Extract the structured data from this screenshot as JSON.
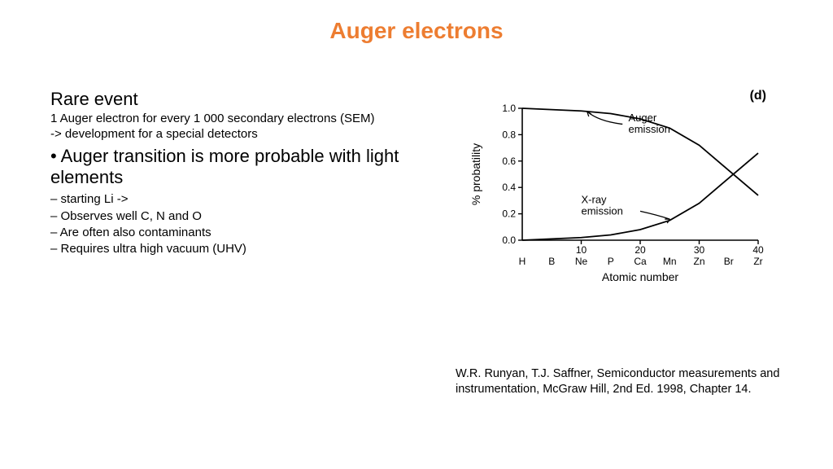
{
  "title": {
    "text": "Auger electrons",
    "color": "#ed7d31",
    "fontsize": 28
  },
  "left": {
    "heading": "Rare event",
    "line1": "1 Auger electron for every 1 000 secondary electrons (SEM)",
    "line2": "-> development for a special detectors",
    "bullet": "• Auger transition is more probable with light elements",
    "sub1": "– starting Li ->",
    "sub2": "– Observes well C, N and O",
    "sub3": "– Are often also contaminants",
    "sub4": "– Requires ultra high vacuum (UHV)"
  },
  "chart": {
    "type": "line",
    "panel_label": "(d)",
    "ylabel": "% probatility",
    "xlabel": "Atomic number",
    "ylim": [
      0.0,
      1.0
    ],
    "yticks": [
      0.0,
      0.2,
      0.4,
      0.6,
      0.8,
      1.0
    ],
    "xlim": [
      0,
      40
    ],
    "xticks_num": [
      10,
      20,
      30,
      40
    ],
    "xticks_elem": [
      "H",
      "B",
      "Ne",
      "P",
      "Ca",
      "Mn",
      "Zn",
      "Br",
      "Zr"
    ],
    "xticks_elem_pos": [
      0,
      5,
      10,
      15,
      20,
      25,
      30,
      35,
      40
    ],
    "series": {
      "auger": {
        "label": "Auger emission",
        "color": "#000000",
        "line_width": 1.8,
        "points": [
          [
            0,
            1.0
          ],
          [
            5,
            0.99
          ],
          [
            10,
            0.98
          ],
          [
            15,
            0.96
          ],
          [
            20,
            0.92
          ],
          [
            25,
            0.85
          ],
          [
            30,
            0.72
          ],
          [
            35,
            0.53
          ],
          [
            40,
            0.34
          ]
        ]
      },
      "xray": {
        "label": "X-ray emission",
        "color": "#000000",
        "line_width": 1.8,
        "points": [
          [
            0,
            0.0
          ],
          [
            5,
            0.01
          ],
          [
            10,
            0.02
          ],
          [
            15,
            0.04
          ],
          [
            20,
            0.08
          ],
          [
            25,
            0.15
          ],
          [
            30,
            0.28
          ],
          [
            35,
            0.47
          ],
          [
            40,
            0.66
          ]
        ]
      }
    },
    "axis_color": "#000000",
    "background_color": "#ffffff",
    "tick_fontsize": 12,
    "label_fontsize": 14,
    "annotation_fontsize": 13
  },
  "citation": "W.R. Runyan, T.J. Saffner, Semiconductor measurements and instrumentation, McGraw Hill, 2nd Ed. 1998, Chapter 14."
}
